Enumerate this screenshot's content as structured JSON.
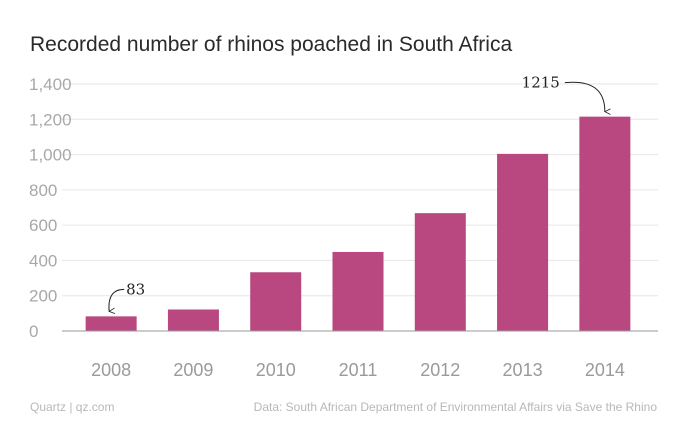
{
  "chart_data": {
    "type": "bar",
    "title": "Recorded number of rhinos poached in South Africa",
    "categories": [
      "2008",
      "2009",
      "2010",
      "2011",
      "2012",
      "2013",
      "2014"
    ],
    "values": [
      83,
      122,
      333,
      448,
      668,
      1004,
      1215
    ],
    "ylim": [
      0,
      1400
    ],
    "yticks": [
      0,
      200,
      400,
      600,
      800,
      1000,
      1200,
      1400
    ],
    "ytick_labels": [
      "0",
      "200",
      "400",
      "600",
      "800",
      "1,000",
      "1,200",
      "1,400"
    ],
    "grid": true,
    "bar_color": "#b8487f",
    "annotations": [
      {
        "category": "2008",
        "label": "83"
      },
      {
        "category": "2014",
        "label": "1215"
      }
    ]
  },
  "footer": {
    "source_left": "Quartz | qz.com",
    "source_right": "Data: South African Department of Environmental Affairs via Save the Rhino"
  }
}
